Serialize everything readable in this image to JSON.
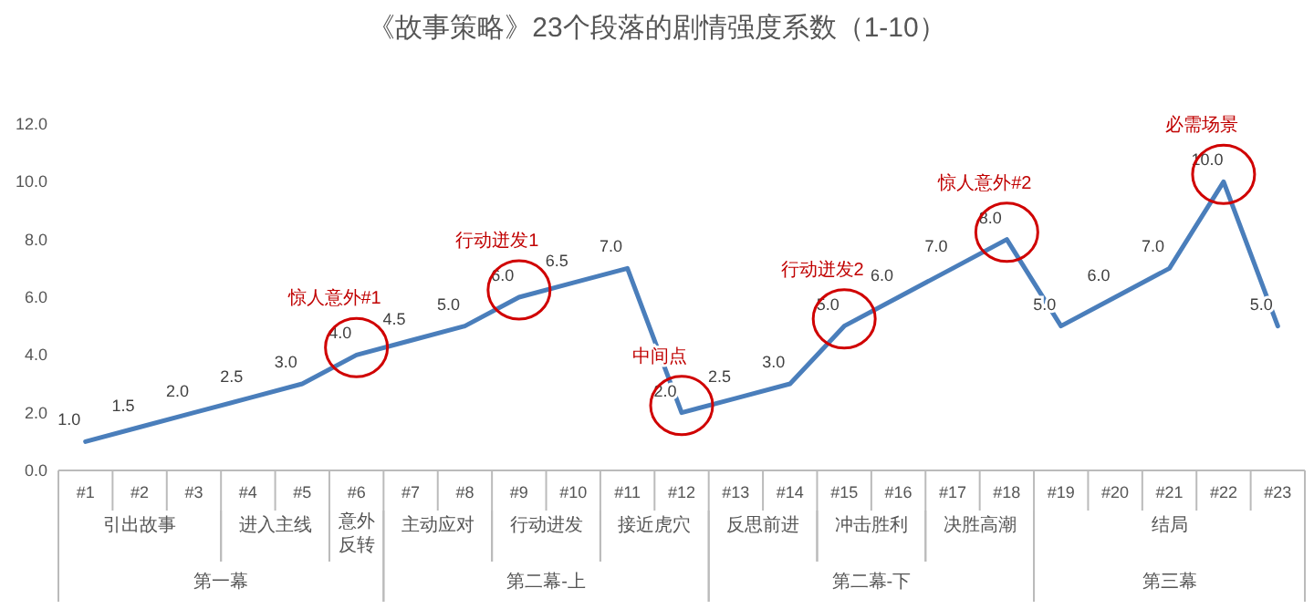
{
  "chart_data": {
    "type": "line",
    "title": "《故事策略》23个段落的剧情强度系数（1-10）",
    "categories": [
      "#1",
      "#2",
      "#3",
      "#4",
      "#5",
      "#6",
      "#7",
      "#8",
      "#9",
      "#10",
      "#11",
      "#12",
      "#13",
      "#14",
      "#15",
      "#16",
      "#17",
      "#18",
      "#19",
      "#20",
      "#21",
      "#22",
      "#23"
    ],
    "series": [
      {
        "color": "#4a7ebb",
        "values": [
          1,
          1.5,
          2,
          2.5,
          3,
          4,
          4.5,
          5,
          6,
          6.5,
          7,
          2,
          2.5,
          3,
          5,
          6,
          7,
          8,
          5,
          6,
          7,
          10,
          5
        ],
        "value_labels": [
          "1.0",
          "1.5",
          "2.0",
          "2.5",
          "3.0",
          "4.0",
          "4.5",
          "5.0",
          "6.0",
          "6.5",
          "7.0",
          "2.0",
          "2.5",
          "3.0",
          "5.0",
          "6.0",
          "7.0",
          "8.0",
          "5.0",
          "6.0",
          "7.0",
          "10.0",
          "5.0"
        ]
      }
    ],
    "ylim": [
      0,
      12
    ],
    "yticks": [
      {
        "value": 0,
        "label": "0.0"
      },
      {
        "value": 2,
        "label": "2.0"
      },
      {
        "value": 4,
        "label": "4.0"
      },
      {
        "value": 6,
        "label": "6.0"
      },
      {
        "value": 8,
        "label": "8.0"
      },
      {
        "value": 10,
        "label": "10.0"
      },
      {
        "value": 12,
        "label": "12.0"
      }
    ],
    "grid": false,
    "marker": "none",
    "line_style": "solid",
    "annotations": [
      {
        "text": "惊人意外#1",
        "x": "#6",
        "y": 4
      },
      {
        "text": "行动迸发1",
        "x": "#9",
        "y": 6
      },
      {
        "text": "中间点",
        "x": "#12",
        "y": 2
      },
      {
        "text": "行动迸发2",
        "x": "#15",
        "y": 5
      },
      {
        "text": "惊人意外#2",
        "x": "#18",
        "y": 8
      },
      {
        "text": "必需场景",
        "x": "#22",
        "y": 10
      },
      "引出故事",
      "进入主线",
      "意外反转",
      "主动应对",
      "行动进发",
      "接近虎穴",
      "反思前进",
      "冲击胜利",
      "决胜高潮",
      "结局",
      "第一幕",
      "第二幕-上",
      "第二幕-下",
      "第三幕"
    ]
  }
}
